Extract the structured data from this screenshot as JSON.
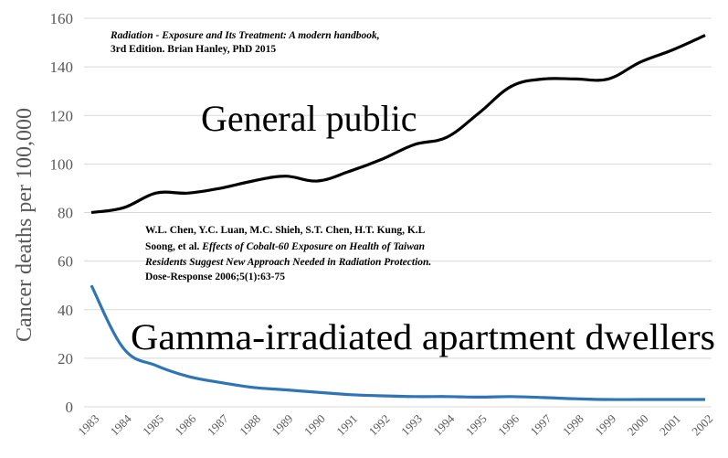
{
  "chart_data": {
    "type": "line",
    "ylabel": "Cancer deaths per 100,000",
    "xlabel": "",
    "ylim": [
      0,
      160
    ],
    "yticks": [
      0,
      20,
      40,
      60,
      80,
      100,
      120,
      140,
      160
    ],
    "grid": "horizontal",
    "categories": [
      "1983",
      "1984",
      "1985",
      "1986",
      "1987",
      "1988",
      "1989",
      "1990",
      "1991",
      "1992",
      "1993",
      "1994",
      "1995",
      "1996",
      "1997",
      "1998",
      "1999",
      "2000",
      "2001",
      "2002"
    ],
    "series": [
      {
        "name": "General public",
        "color": "#000000",
        "values": [
          80,
          82,
          88,
          88,
          90,
          93,
          95,
          93,
          97,
          102,
          108,
          111,
          121,
          132,
          135,
          135,
          135,
          142,
          147,
          153
        ]
      },
      {
        "name": "Gamma-irradiated apartment dwellers",
        "color": "#2e75b6",
        "values": [
          50,
          24,
          17,
          12.5,
          10,
          8,
          7,
          6,
          5,
          4.5,
          4.2,
          4.2,
          4,
          4.2,
          3.8,
          3.3,
          3,
          3,
          3,
          3
        ]
      }
    ],
    "annotations": {
      "source_line1": "Radiation - Exposure and Its Treatment: A modern handbook,",
      "source_line2": "3rd Edition.  Brian Hanley, PhD 2015",
      "citation_line1": "W.L. Chen, Y.C. Luan, M.C. Shieh, S.T. Chen, H.T. Kung, K.L",
      "citation_line2_prefix": "Soong, et al.  ",
      "citation_line2_italic": "Effects of Cobalt-60 Exposure on Health of Taiwan",
      "citation_line3": "Residents Suggest New Approach Needed in Radiation Protection.",
      "citation_line4": "Dose-Response 2006;5(1):63-75"
    }
  }
}
